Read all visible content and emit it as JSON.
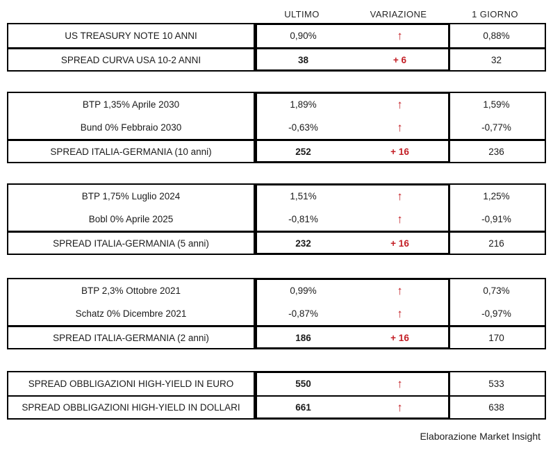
{
  "header": {
    "columns": {
      "ultimo": "ULTIMO",
      "variazione": "VARIAZIONE",
      "giorno": "1 GIORNO"
    }
  },
  "colors": {
    "variation_red": "#C31E25",
    "border_black": "#000000",
    "background": "#FFFFFF"
  },
  "icons": {
    "up_arrow": "↑"
  },
  "groups": [
    {
      "name": "us-treasury",
      "rows": [
        {
          "label": "US TREASURY NOTE 10 ANNI",
          "ultimo": "0,90%",
          "variazione": "↑",
          "giorno": "0,88%"
        },
        {
          "label": "SPREAD CURVA USA 10-2 ANNI",
          "ultimo": "38",
          "variazione": "+ 6",
          "giorno": "32"
        }
      ]
    },
    {
      "name": "italia-germania-10-anni",
      "rows": [
        {
          "label": "BTP 1,35% Aprile 2030",
          "ultimo": "1,89%",
          "variazione": "↑",
          "giorno": "1,59%"
        },
        {
          "label": "Bund 0% Febbraio 2030",
          "ultimo": "-0,63%",
          "variazione": "↑",
          "giorno": "-0,77%"
        },
        {
          "label": "SPREAD ITALIA-GERMANIA (10 anni)",
          "ultimo": "252",
          "variazione": "+ 16",
          "giorno": "236"
        }
      ]
    },
    {
      "name": "italia-germania-5-anni",
      "rows": [
        {
          "label": "BTP 1,75% Luglio 2024",
          "ultimo": "1,51%",
          "variazione": "↑",
          "giorno": "1,25%"
        },
        {
          "label": "Bobl 0% Aprile 2025",
          "ultimo": "-0,81%",
          "variazione": "↑",
          "giorno": "-0,91%"
        },
        {
          "label": "SPREAD ITALIA-GERMANIA (5 anni)",
          "ultimo": "232",
          "variazione": "+ 16",
          "giorno": "216"
        }
      ]
    },
    {
      "name": "italia-germania-2-anni",
      "rows": [
        {
          "label": "BTP 2,3% Ottobre 2021",
          "ultimo": "0,99%",
          "variazione": "↑",
          "giorno": "0,73%"
        },
        {
          "label": "Schatz 0% Dicembre 2021",
          "ultimo": "-0,87%",
          "variazione": "↑",
          "giorno": "-0,97%"
        },
        {
          "label": "SPREAD ITALIA-GERMANIA (2 anni)",
          "ultimo": "186",
          "variazione": "+ 16",
          "giorno": "170"
        }
      ]
    },
    {
      "name": "high-yield",
      "rows": [
        {
          "label": "SPREAD OBBLIGAZIONI HIGH-YIELD IN EURO",
          "ultimo": "550",
          "variazione": "↑",
          "giorno": "533"
        },
        {
          "label": "SPREAD OBBLIGAZIONI HIGH-YIELD IN DOLLARI",
          "ultimo": "661",
          "variazione": "↑",
          "giorno": "638"
        }
      ]
    }
  ],
  "footer": {
    "credit": "Elaborazione Market Insight"
  }
}
